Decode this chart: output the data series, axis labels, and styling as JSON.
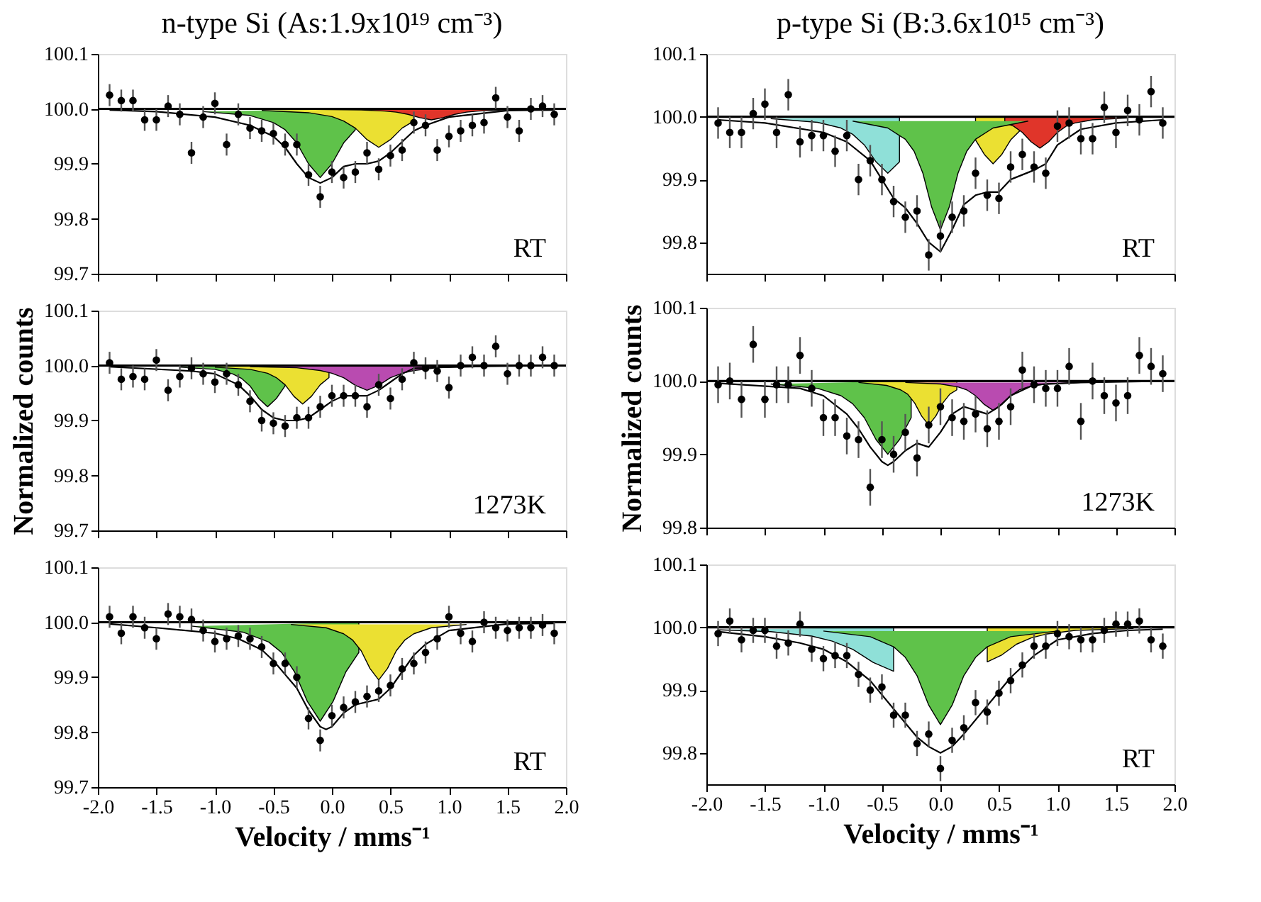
{
  "chart_data": [
    {
      "type": "scatter",
      "title": "n-type Si (As:1.9x10¹⁹ cm⁻³)",
      "tick_labels": "y",
      "annotations": [
        "RT"
      ],
      "xlim": [
        -2.0,
        2.0
      ],
      "ylim": [
        99.7,
        100.1
      ],
      "xticks": [
        {
          "value": -2.0,
          "label": null
        },
        {
          "value": -1.5,
          "label": null
        },
        {
          "value": -1.0,
          "label": null
        },
        {
          "value": -0.5,
          "label": null
        },
        {
          "value": 0.0,
          "label": null
        },
        {
          "value": 0.5,
          "label": null
        },
        {
          "value": 1.0,
          "label": null
        },
        {
          "value": 1.5,
          "label": null
        },
        {
          "value": 2.0,
          "label": null
        }
      ],
      "yticks": [
        {
          "value": 99.7,
          "label": "99.7"
        },
        {
          "value": 99.8,
          "label": "99.8"
        },
        {
          "value": 99.9,
          "label": "99.9"
        },
        {
          "value": 100.0,
          "label": "100.0"
        },
        {
          "value": 100.1,
          "label": "100.1"
        }
      ],
      "ref_lines": [
        {
          "axis": "y",
          "value": 100.0,
          "color": "#000000"
        }
      ],
      "x": [
        -1.9,
        -1.8,
        -1.7,
        -1.6,
        -1.5,
        -1.4,
        -1.3,
        -1.2,
        -1.1,
        -1.0,
        -0.9,
        -0.8,
        -0.7,
        -0.6,
        -0.5,
        -0.4,
        -0.3,
        -0.2,
        -0.1,
        0.0,
        0.1,
        0.2,
        0.3,
        0.4,
        0.5,
        0.6,
        0.7,
        0.8,
        0.9,
        1.0,
        1.1,
        1.2,
        1.3,
        1.4,
        1.5,
        1.6,
        1.7,
        1.8,
        1.9
      ],
      "series": [
        {
          "type": "area",
          "color": "#5fc24a",
          "x": [
            -1.1,
            -0.7,
            -0.5,
            -0.4,
            -0.3,
            -0.2,
            -0.1,
            0.0,
            0.1,
            0.2,
            0.2
          ],
          "values": [
            99.995,
            99.988,
            99.975,
            99.962,
            99.938,
            99.9,
            99.875,
            99.9,
            99.938,
            99.962,
            100.0
          ]
        },
        {
          "type": "area",
          "color": "#ebe032",
          "x": [
            -0.6,
            -0.2,
            0.0,
            0.1,
            0.2,
            0.3,
            0.4,
            0.5,
            0.6,
            0.7,
            0.7
          ],
          "values": [
            99.997,
            99.993,
            99.986,
            99.978,
            99.965,
            99.944,
            99.93,
            99.944,
            99.965,
            99.978,
            100.0
          ]
        },
        {
          "type": "area",
          "color": "#e0352a",
          "x": [
            -0.15,
            0.25,
            0.45,
            0.55,
            0.65,
            0.75,
            0.85,
            0.95,
            1.05,
            1.15,
            1.25,
            1.45,
            1.85
          ],
          "values": [
            99.999,
            99.998,
            99.996,
            99.994,
            99.99,
            99.984,
            99.98,
            99.984,
            99.99,
            99.994,
            99.996,
            99.998,
            99.999
          ]
        },
        {
          "type": "line",
          "color": "#000000",
          "x": [
            -1.9,
            -1.5,
            -1.0,
            -0.7,
            -0.5,
            -0.4,
            -0.3,
            -0.2,
            -0.1,
            0.0,
            0.1,
            0.2,
            0.3,
            0.4,
            0.5,
            0.6,
            0.7,
            0.8,
            1.0,
            1.5,
            1.9
          ],
          "values": [
            99.998,
            99.995,
            99.985,
            99.97,
            99.95,
            99.93,
            99.9,
            99.875,
            99.865,
            99.875,
            99.895,
            99.9,
            99.9,
            99.905,
            99.92,
            99.94,
            99.96,
            99.97,
            99.985,
            99.997,
            99.998
          ]
        },
        {
          "type": "scatter",
          "marker": "circle",
          "color": "#000000",
          "values": [
            100.025,
            100.015,
            100.015,
            99.98,
            99.98,
            100.005,
            99.99,
            99.92,
            99.985,
            100.01,
            99.935,
            99.99,
            99.965,
            99.96,
            99.955,
            99.935,
            99.935,
            99.88,
            99.84,
            99.885,
            99.875,
            99.885,
            99.92,
            99.89,
            99.915,
            99.925,
            99.975,
            99.97,
            99.925,
            99.95,
            99.96,
            99.97,
            99.975,
            100.02,
            99.985,
            99.96,
            100.0,
            100.005,
            99.99
          ],
          "errors": [
            0.02,
            0.02,
            0.02,
            0.02,
            0.02,
            0.02,
            0.02,
            0.02,
            0.02,
            0.02,
            0.02,
            0.02,
            0.02,
            0.02,
            0.02,
            0.02,
            0.02,
            0.02,
            0.02,
            0.02,
            0.02,
            0.02,
            0.02,
            0.02,
            0.02,
            0.02,
            0.02,
            0.02,
            0.02,
            0.02,
            0.02,
            0.02,
            0.02,
            0.02,
            0.02,
            0.02,
            0.02,
            0.02,
            0.02
          ]
        }
      ]
    },
    {
      "type": "scatter",
      "title": "p-type Si (B:3.6x10¹⁵ cm⁻³)",
      "tick_labels": "y",
      "annotations": [
        "RT"
      ],
      "xlim": [
        -2.0,
        2.0
      ],
      "ylim": [
        99.75,
        100.1
      ],
      "xticks": [
        {
          "value": -2.0,
          "label": null
        },
        {
          "value": -1.5,
          "label": null
        },
        {
          "value": -1.0,
          "label": null
        },
        {
          "value": -0.5,
          "label": null
        },
        {
          "value": 0.0,
          "label": null
        },
        {
          "value": 0.5,
          "label": null
        },
        {
          "value": 1.0,
          "label": null
        },
        {
          "value": 1.5,
          "label": null
        },
        {
          "value": 2.0,
          "label": null
        }
      ],
      "yticks": [
        {
          "value": 99.8,
          "label": "99.8"
        },
        {
          "value": 99.9,
          "label": "99.9"
        },
        {
          "value": 100.0,
          "label": "100.0"
        },
        {
          "value": 100.1,
          "label": "100.1"
        }
      ],
      "ref_lines": [
        {
          "axis": "y",
          "value": 100.0,
          "color": "#000000"
        }
      ],
      "x": [
        -1.9,
        -1.8,
        -1.7,
        -1.6,
        -1.5,
        -1.4,
        -1.3,
        -1.2,
        -1.1,
        -1.0,
        -0.9,
        -0.8,
        -0.7,
        -0.6,
        -0.5,
        -0.4,
        -0.3,
        -0.2,
        -0.1,
        0.0,
        0.1,
        0.2,
        0.3,
        0.4,
        0.5,
        0.6,
        0.7,
        0.8,
        0.9,
        1.0,
        1.1,
        1.2,
        1.3,
        1.4,
        1.5,
        1.6,
        1.7,
        1.8,
        1.9
      ],
      "series": [
        {
          "type": "area",
          "color": "#8fe0d8",
          "x": [
            -1.45,
            -1.05,
            -0.85,
            -0.75,
            -0.65,
            -0.55,
            -0.45,
            -0.35,
            -0.35
          ],
          "values": [
            99.997,
            99.991,
            99.982,
            99.972,
            99.955,
            99.928,
            99.91,
            99.928,
            100.0
          ]
        },
        {
          "type": "area",
          "color": "#ebe032",
          "x": [
            0.3,
            0.3,
            0.375,
            0.45,
            0.525,
            0.6,
            0.675,
            0.675
          ],
          "values": [
            100.0,
            99.963,
            99.94,
            99.925,
            99.94,
            99.963,
            99.977,
            100.0
          ]
        },
        {
          "type": "area",
          "color": "#e0352a",
          "x": [
            0.55,
            0.55,
            0.625,
            0.7,
            0.775,
            0.85,
            0.925,
            1.0,
            1.075,
            1.15,
            1.3,
            1.6
          ],
          "values": [
            100.0,
            99.99,
            99.985,
            99.975,
            99.96,
            99.95,
            99.96,
            99.975,
            99.985,
            99.99,
            99.995,
            99.998
          ]
        },
        {
          "type": "area",
          "color": "#5fc24a",
          "x": [
            -0.75,
            -0.45,
            -0.3,
            -0.225,
            -0.15,
            -0.075,
            0.0,
            0.075,
            0.15,
            0.225,
            0.3,
            0.45,
            0.75
          ],
          "values": [
            99.993,
            99.982,
            99.964,
            99.945,
            99.91,
            99.856,
            99.82,
            99.856,
            99.91,
            99.945,
            99.964,
            99.982,
            99.993
          ]
        },
        {
          "type": "line",
          "color": "#000000",
          "x": [
            -1.9,
            -1.5,
            -1.0,
            -0.8,
            -0.6,
            -0.4,
            -0.3,
            -0.2,
            -0.1,
            0.0,
            0.1,
            0.2,
            0.3,
            0.4,
            0.5,
            0.6,
            0.8,
            0.9,
            1.0,
            1.2,
            1.5,
            1.9
          ],
          "values": [
            99.995,
            99.99,
            99.975,
            99.96,
            99.93,
            99.87,
            99.855,
            99.83,
            99.8,
            99.785,
            99.82,
            99.86,
            99.875,
            99.88,
            99.88,
            99.9,
            99.915,
            99.925,
            99.955,
            99.98,
            99.99,
            99.995
          ]
        },
        {
          "type": "scatter",
          "marker": "circle",
          "color": "#000000",
          "values": [
            99.99,
            99.975,
            99.975,
            100.005,
            100.02,
            99.975,
            100.035,
            99.96,
            99.97,
            99.97,
            99.945,
            99.97,
            99.9,
            99.93,
            99.9,
            99.865,
            99.84,
            99.85,
            99.78,
            99.81,
            99.84,
            99.85,
            99.91,
            99.875,
            99.87,
            99.92,
            99.94,
            99.92,
            99.91,
            99.985,
            99.99,
            99.965,
            99.965,
            100.015,
            99.975,
            100.01,
            99.995,
            100.04,
            99.99
          ],
          "errors": [
            0.025,
            0.025,
            0.025,
            0.025,
            0.025,
            0.025,
            0.025,
            0.025,
            0.025,
            0.025,
            0.025,
            0.025,
            0.025,
            0.025,
            0.025,
            0.025,
            0.025,
            0.025,
            0.025,
            0.025,
            0.025,
            0.025,
            0.025,
            0.025,
            0.025,
            0.025,
            0.025,
            0.025,
            0.025,
            0.025,
            0.025,
            0.025,
            0.025,
            0.025,
            0.025,
            0.025,
            0.025,
            0.025,
            0.025
          ]
        }
      ]
    },
    {
      "type": "scatter",
      "ylabel": "Normalized counts",
      "tick_labels": "y",
      "annotations": [
        "1273K"
      ],
      "xlim": [
        -2.0,
        2.0
      ],
      "ylim": [
        99.7,
        100.1
      ],
      "xticks": [
        {
          "value": -2.0,
          "label": null
        },
        {
          "value": -1.5,
          "label": null
        },
        {
          "value": -1.0,
          "label": null
        },
        {
          "value": -0.5,
          "label": null
        },
        {
          "value": 0.0,
          "label": null
        },
        {
          "value": 0.5,
          "label": null
        },
        {
          "value": 1.0,
          "label": null
        },
        {
          "value": 1.5,
          "label": null
        },
        {
          "value": 2.0,
          "label": null
        }
      ],
      "yticks": [
        {
          "value": 99.7,
          "label": "99.7"
        },
        {
          "value": 99.8,
          "label": "99.8"
        },
        {
          "value": 99.9,
          "label": "99.9"
        },
        {
          "value": 100.0,
          "label": "100.0"
        },
        {
          "value": 100.1,
          "label": "100.1"
        }
      ],
      "ref_lines": [
        {
          "axis": "y",
          "value": 100.0,
          "color": "#000000"
        }
      ],
      "x": [
        -1.9,
        -1.8,
        -1.7,
        -1.6,
        -1.5,
        -1.4,
        -1.3,
        -1.2,
        -1.1,
        -1.0,
        -0.9,
        -0.8,
        -0.7,
        -0.6,
        -0.5,
        -0.4,
        -0.3,
        -0.2,
        -0.1,
        0.0,
        0.1,
        0.2,
        0.3,
        0.4,
        0.5,
        0.6,
        0.7,
        0.8,
        0.9,
        1.0,
        1.1,
        1.2,
        1.3,
        1.4,
        1.5,
        1.6,
        1.7,
        1.8,
        1.9
      ],
      "series": [
        {
          "type": "area",
          "color": "#5fc24a",
          "x": [
            -1.3,
            -1.0,
            -0.85,
            -0.775,
            -0.7,
            -0.625,
            -0.55,
            -0.475,
            -0.4,
            -0.4
          ],
          "values": [
            99.997,
            99.993,
            99.985,
            99.977,
            99.963,
            99.94,
            99.925,
            99.94,
            99.963,
            100.0
          ]
        },
        {
          "type": "area",
          "color": "#ebe032",
          "x": [
            -1.0,
            -0.7,
            -0.55,
            -0.475,
            -0.4,
            -0.325,
            -0.25,
            -0.175,
            -0.1,
            -0.025,
            -0.025
          ],
          "values": [
            99.997,
            99.993,
            99.986,
            99.978,
            99.965,
            99.944,
            99.93,
            99.944,
            99.965,
            99.978,
            100.0
          ]
        },
        {
          "type": "area",
          "color": "#b94bb0",
          "x": [
            -0.7,
            -0.3,
            -0.1,
            0.0,
            0.1,
            0.2,
            0.3,
            0.4,
            0.5,
            0.6,
            0.7,
            0.9,
            1.3
          ],
          "values": [
            99.998,
            99.996,
            99.991,
            99.986,
            99.978,
            99.964,
            99.955,
            99.964,
            99.978,
            99.986,
            99.991,
            99.996,
            99.998
          ]
        },
        {
          "type": "line",
          "color": "#000000",
          "x": [
            -1.9,
            -1.2,
            -1.0,
            -0.8,
            -0.7,
            -0.6,
            -0.5,
            -0.4,
            -0.3,
            -0.2,
            -0.1,
            0.0,
            0.1,
            0.2,
            0.3,
            0.4,
            0.5,
            0.6,
            0.7,
            1.0,
            1.9
          ],
          "values": [
            99.998,
            99.99,
            99.985,
            99.965,
            99.945,
            99.92,
            99.905,
            99.9,
            99.9,
            99.905,
            99.92,
            99.935,
            99.945,
            99.945,
            99.945,
            99.955,
            99.97,
            99.985,
            99.995,
            99.998,
            100.0
          ]
        },
        {
          "type": "scatter",
          "marker": "circle",
          "color": "#000000",
          "values": [
            100.005,
            99.975,
            99.98,
            99.975,
            100.01,
            99.955,
            99.98,
            99.995,
            99.985,
            99.97,
            99.985,
            99.965,
            99.935,
            99.9,
            99.895,
            99.89,
            99.905,
            99.905,
            99.925,
            99.945,
            99.945,
            99.945,
            99.925,
            99.965,
            99.94,
            99.975,
            100.005,
            99.995,
            99.99,
            99.96,
            100.0,
            100.015,
            100.0,
            100.035,
            99.985,
            100.0,
            100.0,
            100.015,
            100.0
          ],
          "errors": [
            0.02,
            0.02,
            0.02,
            0.02,
            0.02,
            0.02,
            0.02,
            0.02,
            0.02,
            0.02,
            0.02,
            0.02,
            0.02,
            0.02,
            0.02,
            0.02,
            0.02,
            0.02,
            0.02,
            0.02,
            0.02,
            0.02,
            0.02,
            0.02,
            0.02,
            0.02,
            0.02,
            0.02,
            0.02,
            0.02,
            0.02,
            0.02,
            0.02,
            0.02,
            0.02,
            0.02,
            0.02,
            0.02,
            0.02
          ]
        }
      ]
    },
    {
      "type": "scatter",
      "ylabel": "Normalized counts",
      "tick_labels": "y",
      "annotations": [
        "1273K"
      ],
      "xlim": [
        -2.0,
        2.0
      ],
      "ylim": [
        99.8,
        100.1
      ],
      "xticks": [
        {
          "value": -2.0,
          "label": null
        },
        {
          "value": -1.5,
          "label": null
        },
        {
          "value": -1.0,
          "label": null
        },
        {
          "value": -0.5,
          "label": null
        },
        {
          "value": 0.0,
          "label": null
        },
        {
          "value": 0.5,
          "label": null
        },
        {
          "value": 1.0,
          "label": null
        },
        {
          "value": 1.5,
          "label": null
        },
        {
          "value": 2.0,
          "label": null
        }
      ],
      "yticks": [
        {
          "value": 99.8,
          "label": "99.8"
        },
        {
          "value": 99.9,
          "label": "99.9"
        },
        {
          "value": 100.0,
          "label": "100.0"
        },
        {
          "value": 100.1,
          "label": "100.1"
        }
      ],
      "ref_lines": [
        {
          "axis": "y",
          "value": 100.0,
          "color": "#000000"
        }
      ],
      "x": [
        -1.9,
        -1.8,
        -1.7,
        -1.6,
        -1.5,
        -1.4,
        -1.3,
        -1.2,
        -1.1,
        -1.0,
        -0.9,
        -0.8,
        -0.7,
        -0.6,
        -0.5,
        -0.4,
        -0.3,
        -0.2,
        -0.1,
        0.0,
        0.1,
        0.2,
        0.3,
        0.4,
        0.5,
        0.6,
        0.7,
        0.8,
        0.9,
        1.0,
        1.1,
        1.2,
        1.3,
        1.4,
        1.5,
        1.6,
        1.7,
        1.8,
        1.9
      ],
      "series": [
        {
          "type": "area",
          "color": "#5fc24a",
          "x": [
            -1.45,
            -1.05,
            -0.85,
            -0.75,
            -0.65,
            -0.55,
            -0.45,
            -0.35,
            -0.25,
            -0.25
          ],
          "values": [
            99.996,
            99.99,
            99.98,
            99.969,
            99.95,
            99.92,
            99.9,
            99.92,
            99.95,
            100.0
          ]
        },
        {
          "type": "area",
          "color": "#ebe032",
          "x": [
            -0.7,
            -0.46,
            -0.34,
            -0.28,
            -0.22,
            -0.16,
            -0.1,
            -0.04,
            0.02,
            0.08,
            0.14,
            0.14
          ],
          "values": [
            99.998,
            99.994,
            99.988,
            99.982,
            99.97,
            99.952,
            99.94,
            99.952,
            99.97,
            99.982,
            99.988,
            100.0
          ]
        },
        {
          "type": "area",
          "color": "#b94bb0",
          "x": [
            -0.3,
            0.0,
            0.15,
            0.225,
            0.3,
            0.375,
            0.45,
            0.525,
            0.6,
            0.675,
            0.75,
            0.9,
            1.2
          ],
          "values": [
            99.998,
            99.996,
            99.992,
            99.988,
            99.98,
            99.968,
            99.96,
            99.968,
            99.98,
            99.988,
            99.992,
            99.996,
            99.998
          ]
        },
        {
          "type": "line",
          "color": "#000000",
          "x": [
            -1.9,
            -1.2,
            -1.0,
            -0.8,
            -0.7,
            -0.6,
            -0.5,
            -0.45,
            -0.4,
            -0.3,
            -0.2,
            -0.1,
            0.0,
            0.1,
            0.2,
            0.3,
            0.4,
            0.5,
            0.6,
            0.8,
            1.2,
            1.9
          ],
          "values": [
            99.997,
            99.99,
            99.98,
            99.955,
            99.935,
            99.91,
            99.89,
            99.885,
            99.89,
            99.905,
            99.915,
            99.91,
            99.93,
            99.955,
            99.965,
            99.96,
            99.955,
            99.965,
            99.98,
            99.995,
            99.998,
            100.0
          ]
        },
        {
          "type": "scatter",
          "marker": "circle",
          "color": "#000000",
          "values": [
            99.995,
            100.0,
            99.975,
            100.05,
            99.975,
            99.995,
            99.995,
            100.035,
            99.99,
            99.95,
            99.95,
            99.925,
            99.92,
            99.855,
            99.92,
            99.9,
            99.93,
            99.895,
            99.94,
            99.965,
            99.95,
            99.945,
            99.955,
            99.935,
            99.945,
            99.965,
            100.015,
            99.995,
            99.99,
            99.99,
            100.02,
            99.945,
            100.0,
            99.98,
            99.97,
            99.98,
            100.035,
            100.02,
            100.01
          ],
          "errors": [
            0.025,
            0.025,
            0.025,
            0.025,
            0.025,
            0.025,
            0.025,
            0.025,
            0.025,
            0.025,
            0.025,
            0.025,
            0.025,
            0.025,
            0.025,
            0.025,
            0.025,
            0.025,
            0.025,
            0.025,
            0.025,
            0.025,
            0.025,
            0.025,
            0.025,
            0.025,
            0.025,
            0.025,
            0.025,
            0.025,
            0.025,
            0.025,
            0.025,
            0.025,
            0.025,
            0.025,
            0.025,
            0.025,
            0.025
          ]
        }
      ]
    },
    {
      "type": "scatter",
      "xlabel": "Velocity / mms⁻¹",
      "annotations": [
        "RT"
      ],
      "xlim": [
        -2.0,
        2.0
      ],
      "ylim": [
        99.7,
        100.1
      ],
      "xticks": [
        {
          "value": -2.0,
          "label": "-2.0"
        },
        {
          "value": -1.5,
          "label": "-1.5"
        },
        {
          "value": -1.0,
          "label": "-1.0"
        },
        {
          "value": -0.5,
          "label": "-0.5"
        },
        {
          "value": 0.0,
          "label": "0.0"
        },
        {
          "value": 0.5,
          "label": "0.5"
        },
        {
          "value": 1.0,
          "label": "1.0"
        },
        {
          "value": 1.5,
          "label": "1.5"
        },
        {
          "value": 2.0,
          "label": "2.0"
        }
      ],
      "yticks": [
        {
          "value": 99.7,
          "label": "99.7"
        },
        {
          "value": 99.8,
          "label": "99.8"
        },
        {
          "value": 99.9,
          "label": "99.9"
        },
        {
          "value": 100.0,
          "label": "100.0"
        },
        {
          "value": 100.1,
          "label": "100.1"
        }
      ],
      "ref_lines": [
        {
          "axis": "y",
          "value": 100.0,
          "color": "#000000"
        }
      ],
      "x": [
        -1.9,
        -1.8,
        -1.7,
        -1.6,
        -1.5,
        -1.4,
        -1.3,
        -1.2,
        -1.1,
        -1.0,
        -0.9,
        -0.8,
        -0.7,
        -0.6,
        -0.5,
        -0.4,
        -0.3,
        -0.2,
        -0.1,
        0.0,
        0.1,
        0.2,
        0.3,
        0.4,
        0.5,
        0.6,
        0.7,
        0.8,
        0.9,
        1.0,
        1.1,
        1.2,
        1.3,
        1.4,
        1.5,
        1.6,
        1.7,
        1.8,
        1.9
      ],
      "series": [
        {
          "type": "area",
          "color": "#5fc24a",
          "x": [
            -1.2,
            -0.76,
            -0.54,
            -0.43,
            -0.32,
            -0.21,
            -0.1,
            0.01,
            0.12,
            0.23,
            0.23
          ],
          "values": [
            99.993,
            99.982,
            99.964,
            99.945,
            99.91,
            99.856,
            99.82,
            99.856,
            99.91,
            99.945,
            100.0
          ]
        },
        {
          "type": "area",
          "color": "#ebe032",
          "x": [
            -0.35,
            -0.05,
            0.1,
            0.175,
            0.25,
            0.325,
            0.4,
            0.475,
            0.55,
            0.625,
            0.7,
            0.85,
            1.15
          ],
          "values": [
            99.996,
            99.99,
            99.979,
            99.968,
            99.948,
            99.916,
            99.895,
            99.916,
            99.948,
            99.968,
            99.979,
            99.99,
            99.996
          ]
        },
        {
          "type": "line",
          "color": "#000000",
          "x": [
            -1.9,
            -1.5,
            -1.0,
            -0.8,
            -0.6,
            -0.5,
            -0.4,
            -0.3,
            -0.2,
            -0.1,
            -0.05,
            0.0,
            0.1,
            0.2,
            0.3,
            0.4,
            0.5,
            0.6,
            0.7,
            0.8,
            1.0,
            1.5,
            1.9
          ],
          "values": [
            99.997,
            99.99,
            99.98,
            99.97,
            99.95,
            99.93,
            99.905,
            99.88,
            99.84,
            99.81,
            99.805,
            99.81,
            99.835,
            99.85,
            99.855,
            99.86,
            99.88,
            99.91,
            99.94,
            99.96,
            99.985,
            99.997,
            99.998
          ]
        },
        {
          "type": "scatter",
          "marker": "circle",
          "color": "#000000",
          "values": [
            100.01,
            99.98,
            100.01,
            99.99,
            99.97,
            100.015,
            100.01,
            100.005,
            99.985,
            99.965,
            99.97,
            99.975,
            99.97,
            99.955,
            99.925,
            99.925,
            99.9,
            99.825,
            99.785,
            99.83,
            99.845,
            99.855,
            99.865,
            99.875,
            99.885,
            99.915,
            99.925,
            99.945,
            99.97,
            100.01,
            99.98,
            99.965,
            100.0,
            99.99,
            99.985,
            99.99,
            99.99,
            99.995,
            99.98
          ],
          "errors": [
            0.02,
            0.02,
            0.02,
            0.02,
            0.02,
            0.02,
            0.02,
            0.02,
            0.02,
            0.02,
            0.02,
            0.02,
            0.02,
            0.02,
            0.02,
            0.02,
            0.02,
            0.02,
            0.02,
            0.02,
            0.02,
            0.02,
            0.02,
            0.02,
            0.02,
            0.02,
            0.02,
            0.02,
            0.02,
            0.02,
            0.02,
            0.02,
            0.02,
            0.02,
            0.02,
            0.02,
            0.02,
            0.02,
            0.02
          ]
        }
      ]
    },
    {
      "type": "scatter",
      "xlabel": "Velocity / mms⁻¹",
      "annotations": [
        "RT"
      ],
      "xlim": [
        -2.0,
        2.0
      ],
      "ylim": [
        99.75,
        100.1
      ],
      "xticks": [
        {
          "value": -2.0,
          "label": "-2.0"
        },
        {
          "value": -1.5,
          "label": "-1.5"
        },
        {
          "value": -1.0,
          "label": "-1.0"
        },
        {
          "value": -0.5,
          "label": "-0.5"
        },
        {
          "value": 0.0,
          "label": "0.0"
        },
        {
          "value": 0.5,
          "label": "0.5"
        },
        {
          "value": 1.0,
          "label": "1.0"
        },
        {
          "value": 1.5,
          "label": "1.5"
        },
        {
          "value": 2.0,
          "label": "2.0"
        }
      ],
      "yticks": [
        {
          "value": 99.8,
          "label": "99.8"
        },
        {
          "value": 99.9,
          "label": "99.9"
        },
        {
          "value": 100.0,
          "label": "100.0"
        },
        {
          "value": 100.1,
          "label": "100.1"
        }
      ],
      "ref_lines": [
        {
          "axis": "y",
          "value": 100.0,
          "color": "#000000"
        }
      ],
      "x": [
        -1.9,
        -1.8,
        -1.7,
        -1.6,
        -1.5,
        -1.4,
        -1.3,
        -1.2,
        -1.1,
        -1.0,
        -0.9,
        -0.8,
        -0.7,
        -0.6,
        -0.5,
        -0.4,
        -0.3,
        -0.2,
        -0.1,
        0.0,
        0.1,
        0.2,
        0.3,
        0.4,
        0.5,
        0.6,
        0.7,
        0.8,
        0.9,
        1.0,
        1.1,
        1.2,
        1.3,
        1.4,
        1.5,
        1.6,
        1.7,
        1.8,
        1.9
      ],
      "series": [
        {
          "type": "area",
          "color": "#8fe0d8",
          "x": [
            -1.9,
            -1.45,
            -1.1,
            -0.925,
            -0.75,
            -0.575,
            -0.4,
            -0.4
          ],
          "values": [
            99.996,
            99.993,
            99.986,
            99.978,
            99.965,
            99.944,
            99.93,
            100.0
          ]
        },
        {
          "type": "area",
          "color": "#ebe032",
          "x": [
            0.4,
            0.4,
            0.525,
            0.65,
            0.775,
            0.9,
            1.15,
            1.65
          ],
          "values": [
            100.0,
            99.945,
            99.956,
            99.973,
            99.983,
            99.989,
            99.995,
            99.998
          ]
        },
        {
          "type": "area",
          "color": "#5fc24a",
          "x": [
            -1.0,
            -0.6,
            -0.4,
            -0.3,
            -0.2,
            -0.1,
            0.0,
            0.1,
            0.2,
            0.3,
            0.4,
            0.6,
            1.0
          ],
          "values": [
            99.994,
            99.985,
            99.969,
            99.952,
            99.923,
            99.876,
            99.845,
            99.876,
            99.923,
            99.952,
            99.969,
            99.985,
            99.994
          ]
        },
        {
          "type": "line",
          "color": "#000000",
          "x": [
            -1.9,
            -1.5,
            -1.2,
            -1.0,
            -0.8,
            -0.6,
            -0.4,
            -0.2,
            -0.1,
            0.0,
            0.1,
            0.2,
            0.4,
            0.6,
            0.8,
            1.0,
            1.3,
            1.6,
            1.9
          ],
          "values": [
            99.993,
            99.985,
            99.975,
            99.965,
            99.945,
            99.915,
            99.87,
            99.825,
            99.81,
            99.8,
            99.81,
            99.83,
            99.875,
            99.92,
            99.955,
            99.98,
            99.99,
            99.995,
            99.997
          ]
        },
        {
          "type": "scatter",
          "marker": "circle",
          "color": "#000000",
          "values": [
            99.99,
            100.01,
            99.98,
            99.995,
            99.995,
            99.97,
            99.975,
            100.005,
            99.965,
            99.95,
            99.955,
            99.955,
            99.925,
            99.9,
            99.905,
            99.86,
            99.86,
            99.815,
            99.83,
            99.775,
            99.82,
            99.84,
            99.88,
            99.865,
            99.895,
            99.915,
            99.94,
            99.97,
            99.97,
            99.99,
            99.985,
            99.98,
            99.98,
            99.995,
            100.005,
            100.005,
            100.01,
            99.98,
            99.97
          ],
          "errors": [
            0.02,
            0.02,
            0.02,
            0.02,
            0.02,
            0.02,
            0.02,
            0.02,
            0.02,
            0.02,
            0.02,
            0.02,
            0.02,
            0.02,
            0.02,
            0.02,
            0.02,
            0.02,
            0.02,
            0.02,
            0.02,
            0.02,
            0.02,
            0.02,
            0.02,
            0.02,
            0.02,
            0.02,
            0.02,
            0.02,
            0.02,
            0.02,
            0.02,
            0.02,
            0.02,
            0.02,
            0.02,
            0.02,
            0.02
          ]
        }
      ]
    }
  ]
}
